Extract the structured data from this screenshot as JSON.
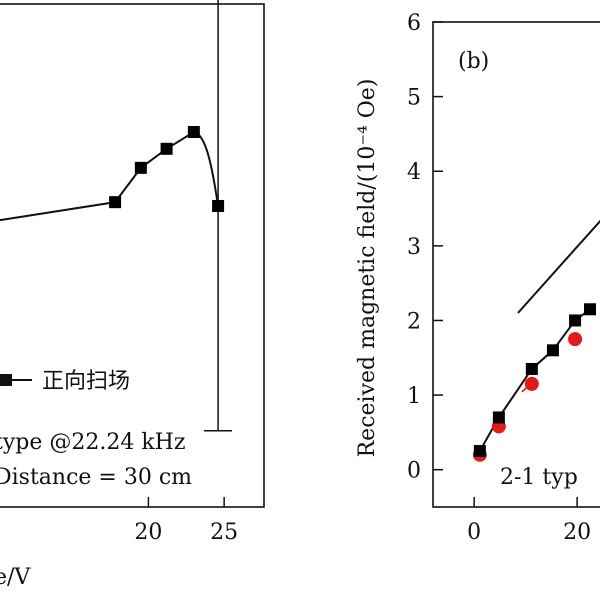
{
  "chart_data": [
    {
      "panel": "",
      "type": "line",
      "xlabel": "e/V",
      "ylabel": "",
      "xlim": [
        10.2,
        27.5
      ],
      "ylim": [
        0,
        6.6
      ],
      "xticks": [
        20,
        25
      ],
      "yticks": [],
      "grid": false,
      "legend": {
        "placement": "bottom-right",
        "label": "正向扫场"
      },
      "annotations": [
        "type @22.24 kHz",
        "Distance = 30 cm"
      ],
      "series": [
        {
          "name": "正向扫场",
          "marker": "square",
          "color": "#000000",
          "x": [
            17.8,
            19.5,
            21.2,
            23.0,
            24.6
          ],
          "y": [
            4.0,
            4.45,
            4.7,
            4.92,
            3.95
          ]
        }
      ],
      "error_bars": [
        {
          "x": 24.6,
          "y": 3.95,
          "low": 1.0,
          "high": 7.2
        }
      ]
    },
    {
      "panel": "(b)",
      "type": "scatter",
      "xlabel": "",
      "ylabel": "Received magnetic field/(10⁻⁴ Oe)",
      "xlim": [
        -8,
        26
      ],
      "ylim": [
        -0.5,
        6
      ],
      "xticks": [
        0,
        20
      ],
      "yticks": [
        0,
        1,
        2,
        3,
        4,
        5,
        6
      ],
      "xtick_labels": [
        "0",
        "20"
      ],
      "grid": false,
      "annotations": [
        "2-1 typ"
      ],
      "series": [
        {
          "marker": "square",
          "color": "#000000",
          "x": [
            1.1,
            4.8,
            11.2,
            15.3,
            19.6,
            22.5
          ],
          "y": [
            0.25,
            0.7,
            1.35,
            1.6,
            2.0,
            2.15
          ]
        },
        {
          "marker": "circle",
          "color": "#e31a1c",
          "x": [
            1.1,
            4.8,
            11.2,
            19.6
          ],
          "y": [
            0.2,
            0.58,
            1.15,
            1.75
          ]
        }
      ],
      "reference_line": {
        "x": [
          8.5,
          26
        ],
        "y": [
          2.1,
          3.45
        ]
      }
    }
  ]
}
